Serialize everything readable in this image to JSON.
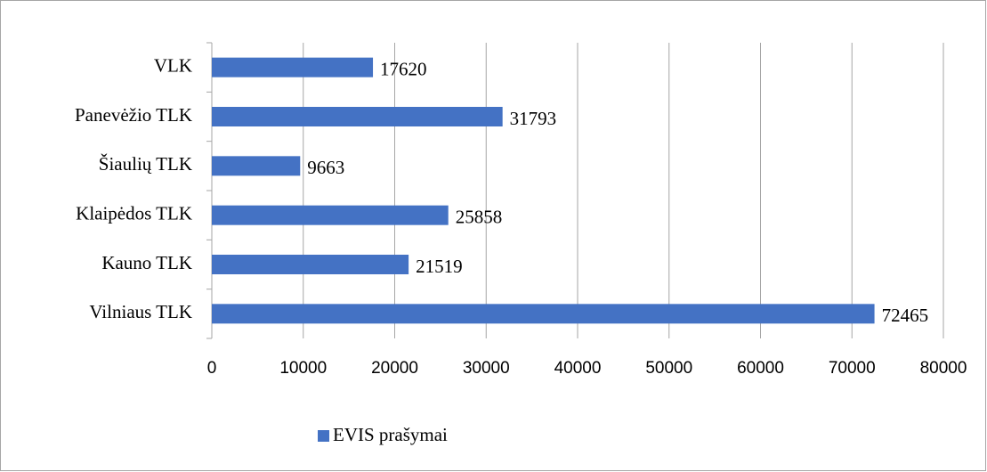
{
  "chart_data": {
    "type": "hbar",
    "categories": [
      "VLK",
      "Panevėžio TLK",
      "Šiaulių TLK",
      "Klaipėdos TLK",
      "Kauno TLK",
      "Vilniaus TLK"
    ],
    "series": [
      {
        "name": "EVIS prašymai",
        "color": "#4472c4",
        "values": [
          17620,
          31793,
          9663,
          25858,
          21519,
          72465
        ]
      }
    ],
    "xlim": [
      0,
      80000
    ],
    "xticks": [
      0,
      10000,
      20000,
      30000,
      40000,
      50000,
      60000,
      70000,
      80000
    ],
    "grid": true,
    "legend": "bottom"
  }
}
